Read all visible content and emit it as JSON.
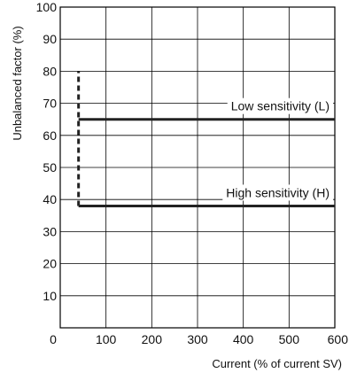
{
  "chart_data": {
    "type": "line",
    "xlabel": "Current (% of current SV)",
    "ylabel": "Unbalanced factor (%)",
    "xlim": [
      0,
      600
    ],
    "ylim": [
      0,
      100
    ],
    "x_ticks": [
      0,
      100,
      200,
      300,
      400,
      500,
      600
    ],
    "y_ticks": [
      10,
      20,
      30,
      40,
      50,
      60,
      70,
      80,
      90,
      100
    ],
    "grid": true,
    "series": [
      {
        "name": "Low sensitivity (L)",
        "x": [
          40,
          600
        ],
        "y": [
          65,
          65
        ]
      },
      {
        "name": "High sensitivity (H)",
        "x": [
          40,
          600
        ],
        "y": [
          38,
          38
        ]
      }
    ],
    "dashed_boundary": {
      "x": 40,
      "y": [
        38,
        80
      ]
    },
    "colors": {
      "line": "#222222",
      "grid": "#000000"
    }
  }
}
